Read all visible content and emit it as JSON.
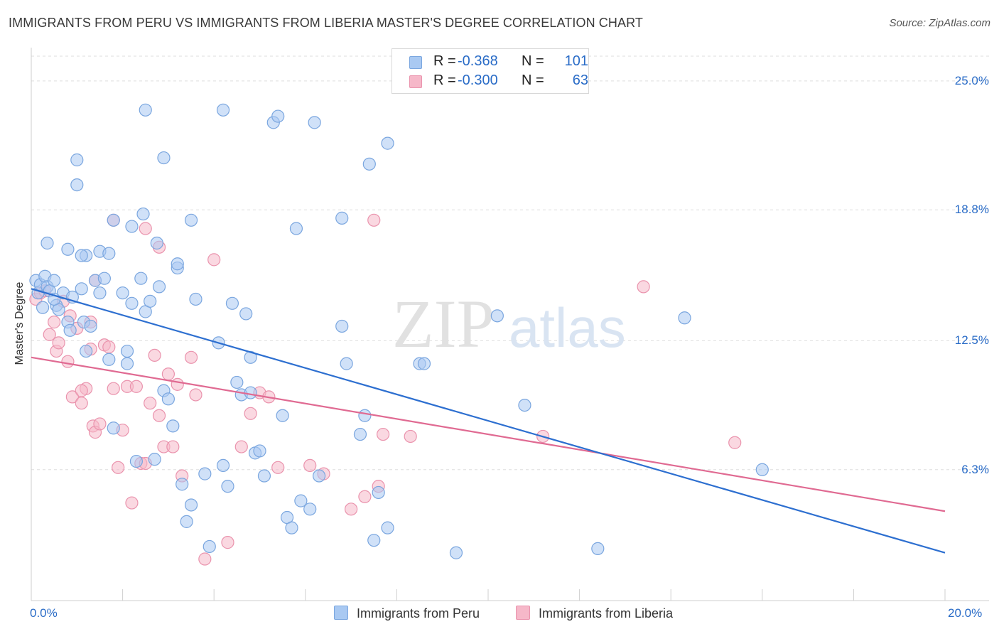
{
  "title": "IMMIGRANTS FROM PERU VS IMMIGRANTS FROM LIBERIA MASTER'S DEGREE CORRELATION CHART",
  "source": "Source: ZipAtlas.com",
  "watermark": {
    "zip": "ZIP",
    "atlas": "atlas"
  },
  "legend": {
    "rows": [
      {
        "r_label": "R =",
        "r_value": "-0.368",
        "n_label": "N =",
        "n_value": "101"
      },
      {
        "r_label": "R =",
        "r_value": "-0.300",
        "n_label": "N =",
        "n_value": "63"
      }
    ]
  },
  "bottom_legend": [
    "Immigrants from Peru",
    "Immigrants from Liberia"
  ],
  "colors": {
    "peru_fill": "#a9c9f2",
    "peru_stroke": "#7aa6df",
    "peru_line": "#2d6fd0",
    "liberia_fill": "#f6b8c9",
    "liberia_stroke": "#ea93ad",
    "liberia_line": "#e06a92",
    "accent_text": "#2a6cc7",
    "grid": "#dddddd"
  },
  "chart_data": {
    "type": "scatter",
    "title": "IMMIGRANTS FROM PERU VS IMMIGRANTS FROM LIBERIA MASTER'S DEGREE CORRELATION CHART",
    "xlabel": "",
    "ylabel": "Master's Degree",
    "xlim": [
      0,
      20
    ],
    "ylim": [
      0,
      26.5
    ],
    "x_tick_labels": [
      "0.0%",
      "20.0%"
    ],
    "y_ticks": [
      6.3,
      12.5,
      18.8,
      25.0
    ],
    "y_tick_labels": [
      "6.3%",
      "12.5%",
      "18.8%",
      "25.0%"
    ],
    "grid": "horizontal dashed",
    "legend_position": "top-center",
    "series": [
      {
        "name": "Immigrants from Peru",
        "r": -0.368,
        "n": 101,
        "trend": {
          "x0": 0,
          "y0": 15.0,
          "x1": 20,
          "y1": 2.3
        },
        "points": [
          [
            0.1,
            15.4
          ],
          [
            0.15,
            14.8
          ],
          [
            0.2,
            15.2
          ],
          [
            0.25,
            14.1
          ],
          [
            0.3,
            15.6
          ],
          [
            0.35,
            15.1
          ],
          [
            0.4,
            14.9
          ],
          [
            0.5,
            15.4
          ],
          [
            0.55,
            14.2
          ],
          [
            0.6,
            14.0
          ],
          [
            0.7,
            14.8
          ],
          [
            0.8,
            13.4
          ],
          [
            0.85,
            13.0
          ],
          [
            0.9,
            14.6
          ],
          [
            1.1,
            15.0
          ],
          [
            1.15,
            13.4
          ],
          [
            1.2,
            16.6
          ],
          [
            1.3,
            13.2
          ],
          [
            1.4,
            15.4
          ],
          [
            1.5,
            14.8
          ],
          [
            1.6,
            15.5
          ],
          [
            1.7,
            11.6
          ],
          [
            1.8,
            8.3
          ],
          [
            2.0,
            14.8
          ],
          [
            2.1,
            11.4
          ],
          [
            2.2,
            14.3
          ],
          [
            2.3,
            6.7
          ],
          [
            2.4,
            15.5
          ],
          [
            2.5,
            13.9
          ],
          [
            2.6,
            14.4
          ],
          [
            2.7,
            6.8
          ],
          [
            2.8,
            15.1
          ],
          [
            2.9,
            10.1
          ],
          [
            3.0,
            9.7
          ],
          [
            3.1,
            8.4
          ],
          [
            3.2,
            16.0
          ],
          [
            3.3,
            5.6
          ],
          [
            3.4,
            3.8
          ],
          [
            3.5,
            4.6
          ],
          [
            3.6,
            14.5
          ],
          [
            3.8,
            6.1
          ],
          [
            3.9,
            2.6
          ],
          [
            4.1,
            12.4
          ],
          [
            4.2,
            6.5
          ],
          [
            4.3,
            5.5
          ],
          [
            4.4,
            14.3
          ],
          [
            4.5,
            10.5
          ],
          [
            4.6,
            9.9
          ],
          [
            4.7,
            13.8
          ],
          [
            4.8,
            11.7
          ],
          [
            4.9,
            7.1
          ],
          [
            5.0,
            7.2
          ],
          [
            5.1,
            6.0
          ],
          [
            5.5,
            8.9
          ],
          [
            5.6,
            4.0
          ],
          [
            5.7,
            3.5
          ],
          [
            5.9,
            4.8
          ],
          [
            6.1,
            4.4
          ],
          [
            6.3,
            6.0
          ],
          [
            6.8,
            13.2
          ],
          [
            6.9,
            11.4
          ],
          [
            7.2,
            8.0
          ],
          [
            7.3,
            8.9
          ],
          [
            7.5,
            2.9
          ],
          [
            7.6,
            5.2
          ],
          [
            7.8,
            3.5
          ],
          [
            8.5,
            11.4
          ],
          [
            8.6,
            11.4
          ],
          [
            9.3,
            2.3
          ],
          [
            10.2,
            13.7
          ],
          [
            10.8,
            9.4
          ],
          [
            12.4,
            2.5
          ],
          [
            14.3,
            13.6
          ],
          [
            16.0,
            6.3
          ],
          [
            0.35,
            17.2
          ],
          [
            0.8,
            16.9
          ],
          [
            1.1,
            16.6
          ],
          [
            1.5,
            16.8
          ],
          [
            1.8,
            18.3
          ],
          [
            2.2,
            18.0
          ],
          [
            2.45,
            18.6
          ],
          [
            3.5,
            18.3
          ],
          [
            2.75,
            17.2
          ],
          [
            5.8,
            17.9
          ],
          [
            6.8,
            18.4
          ],
          [
            1.0,
            20.0
          ],
          [
            1.0,
            21.2
          ],
          [
            2.5,
            23.6
          ],
          [
            2.9,
            21.3
          ],
          [
            4.2,
            23.6
          ],
          [
            5.3,
            23.0
          ],
          [
            5.4,
            23.3
          ],
          [
            6.2,
            23.0
          ],
          [
            7.4,
            21.0
          ],
          [
            7.8,
            22.0
          ],
          [
            1.7,
            16.7
          ],
          [
            3.2,
            16.2
          ],
          [
            0.5,
            14.5
          ],
          [
            2.1,
            12.0
          ],
          [
            1.2,
            12.0
          ],
          [
            4.8,
            10.0
          ]
        ]
      },
      {
        "name": "Immigrants from Liberia",
        "r": -0.3,
        "n": 63,
        "trend": {
          "x0": 0,
          "y0": 11.7,
          "x1": 20,
          "y1": 4.3
        },
        "points": [
          [
            0.1,
            14.5
          ],
          [
            0.2,
            14.8
          ],
          [
            0.3,
            14.9
          ],
          [
            0.4,
            12.8
          ],
          [
            0.5,
            13.4
          ],
          [
            0.55,
            12.0
          ],
          [
            0.6,
            12.4
          ],
          [
            0.7,
            14.4
          ],
          [
            0.8,
            11.5
          ],
          [
            0.85,
            13.7
          ],
          [
            0.9,
            9.8
          ],
          [
            1.0,
            13.1
          ],
          [
            1.1,
            9.5
          ],
          [
            1.2,
            10.2
          ],
          [
            1.3,
            13.4
          ],
          [
            1.35,
            8.4
          ],
          [
            1.4,
            8.1
          ],
          [
            1.5,
            8.5
          ],
          [
            1.6,
            12.3
          ],
          [
            1.7,
            12.2
          ],
          [
            1.8,
            10.2
          ],
          [
            1.9,
            6.4
          ],
          [
            2.0,
            8.2
          ],
          [
            2.1,
            10.3
          ],
          [
            2.2,
            4.7
          ],
          [
            2.3,
            10.3
          ],
          [
            2.4,
            6.6
          ],
          [
            2.5,
            6.6
          ],
          [
            2.6,
            9.5
          ],
          [
            2.7,
            11.8
          ],
          [
            2.8,
            8.9
          ],
          [
            2.9,
            7.4
          ],
          [
            3.0,
            10.9
          ],
          [
            3.1,
            7.4
          ],
          [
            3.2,
            10.4
          ],
          [
            3.3,
            6.0
          ],
          [
            3.5,
            11.7
          ],
          [
            3.6,
            9.9
          ],
          [
            4.0,
            16.4
          ],
          [
            4.3,
            2.8
          ],
          [
            4.6,
            7.4
          ],
          [
            4.8,
            9.0
          ],
          [
            5.0,
            10.0
          ],
          [
            5.2,
            9.8
          ],
          [
            5.4,
            6.4
          ],
          [
            6.1,
            6.5
          ],
          [
            6.4,
            6.1
          ],
          [
            7.0,
            4.4
          ],
          [
            7.3,
            5.0
          ],
          [
            7.6,
            5.5
          ],
          [
            7.7,
            8.0
          ],
          [
            8.3,
            7.9
          ],
          [
            11.2,
            7.9
          ],
          [
            13.4,
            15.1
          ],
          [
            15.4,
            7.6
          ],
          [
            1.8,
            18.3
          ],
          [
            2.5,
            17.9
          ],
          [
            2.8,
            17.0
          ],
          [
            7.5,
            18.3
          ],
          [
            1.4,
            15.4
          ],
          [
            1.3,
            12.1
          ],
          [
            3.8,
            2.0
          ],
          [
            1.1,
            10.1
          ]
        ]
      }
    ]
  }
}
